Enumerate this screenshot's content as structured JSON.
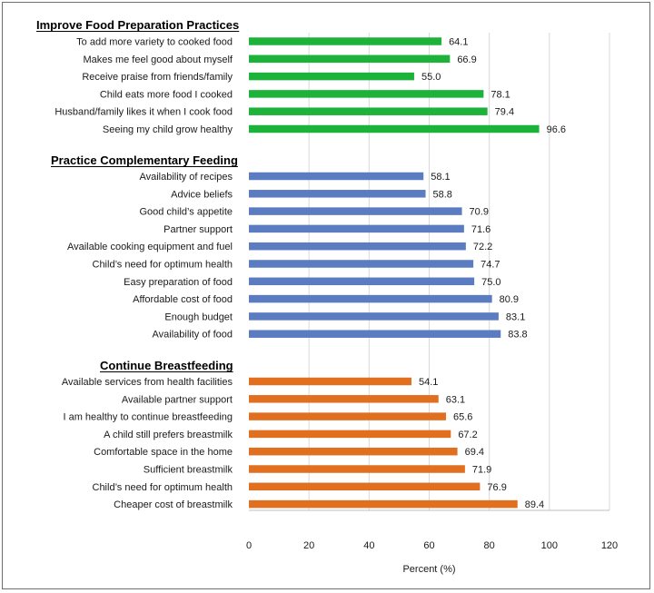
{
  "chart_data": {
    "type": "bar",
    "orientation": "horizontal",
    "xlabel": "Percent (%)",
    "xlim": [
      0,
      120
    ],
    "xticks": [
      0,
      20,
      40,
      60,
      80,
      100,
      120
    ],
    "groups": [
      {
        "title": "Improve Food Preparation Practices",
        "color": "#1db33a",
        "categories": [
          "To add more variety to cooked food",
          "Makes me feel good about myself",
          "Receive praise from friends/family",
          "Child eats more food I cooked",
          "Husband/family likes it when I cook food",
          "Seeing my child grow healthy"
        ],
        "values": [
          64.1,
          66.9,
          55.0,
          78.1,
          79.4,
          96.6
        ]
      },
      {
        "title": "Practice Complementary Feeding",
        "color": "#5b7cc1",
        "categories": [
          "Availability of recipes",
          "Advice beliefs",
          "Good child’s appetite",
          "Partner support",
          "Available cooking equipment and fuel",
          "Child’s need for optimum health",
          "Easy preparation of food",
          "Affordable cost of food",
          "Enough budget",
          "Availability of food"
        ],
        "values": [
          58.1,
          58.8,
          70.9,
          71.6,
          72.2,
          74.7,
          75.0,
          80.9,
          83.1,
          83.8
        ]
      },
      {
        "title": "Continue Breastfeeding",
        "color": "#e07020",
        "categories": [
          "Available services from health facilities",
          "Available partner support",
          "I am healthy to continue breastfeeding",
          "A child still prefers breastmilk",
          "Comfortable space in the home",
          "Sufficient breastmilk",
          "Child’s need for optimum health",
          "Cheaper cost of breastmilk"
        ],
        "values": [
          54.1,
          63.1,
          65.6,
          67.2,
          69.4,
          71.9,
          76.9,
          89.4
        ]
      }
    ]
  }
}
